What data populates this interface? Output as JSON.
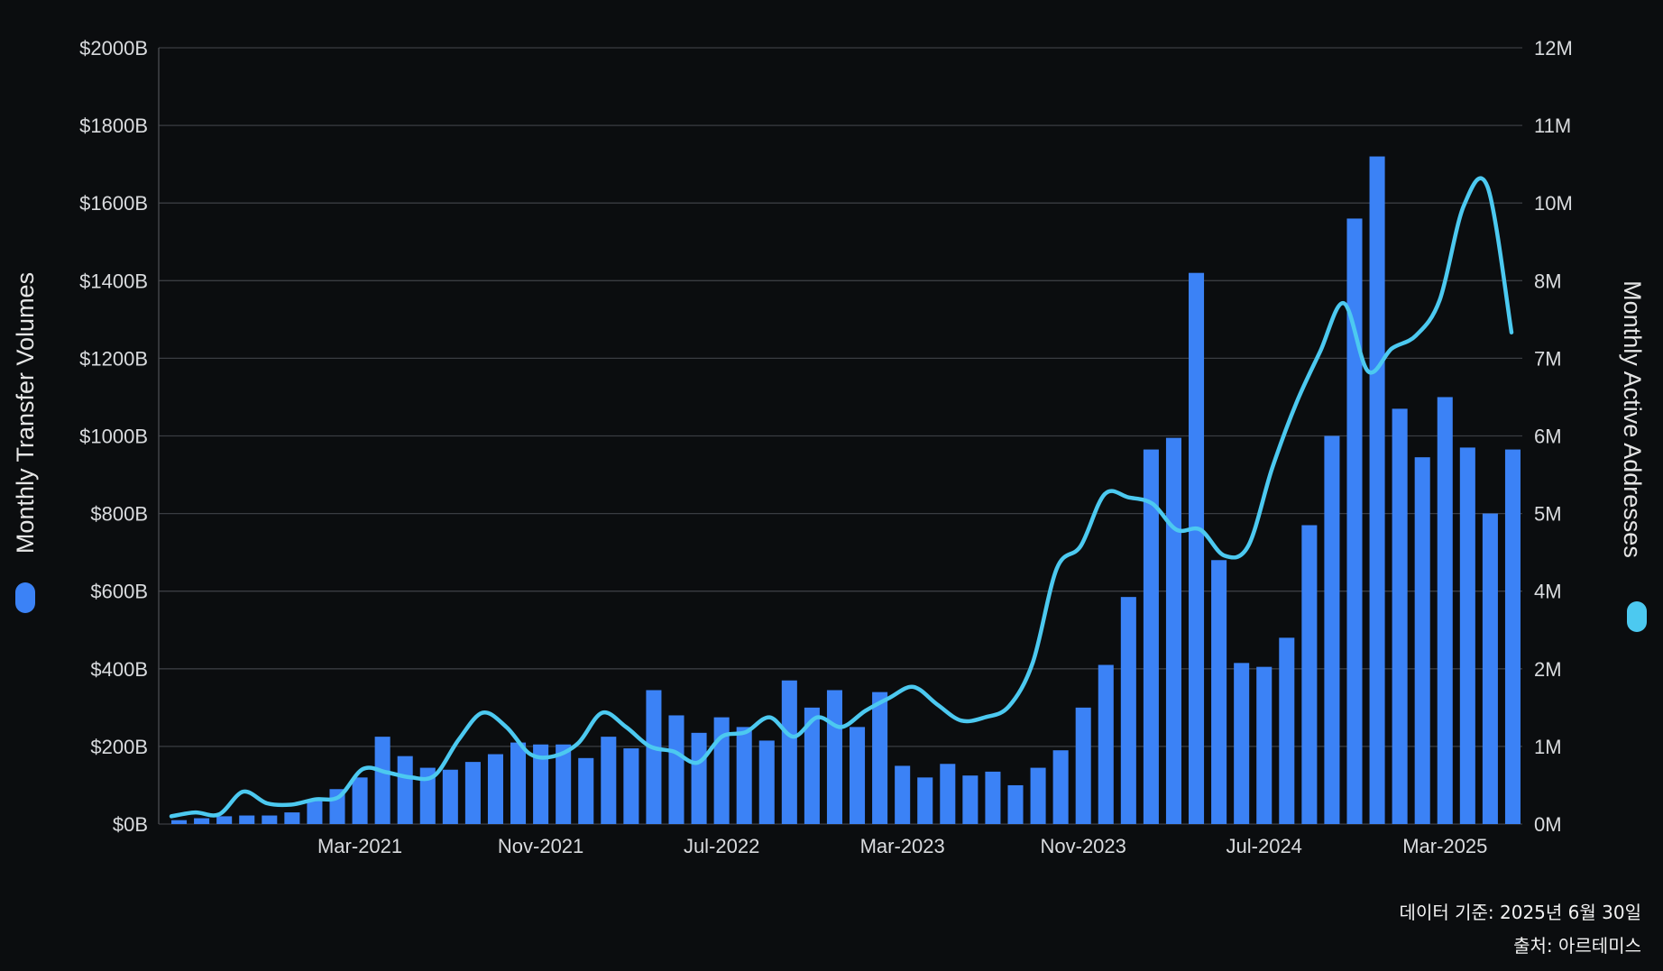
{
  "chart_data": {
    "type": "bar",
    "x_ticks": [
      "Mar-2021",
      "Nov-2021",
      "Jul-2022",
      "Mar-2023",
      "Nov-2023",
      "Jul-2024",
      "Mar-2025"
    ],
    "left_axis": {
      "label": "Monthly Transfer Volumes",
      "ticks": [
        "$0B",
        "$200B",
        "$400B",
        "$600B",
        "$800B",
        "$1000B",
        "$1200B",
        "$1400B",
        "$1600B",
        "$1800B",
        "$2000B"
      ],
      "ylim": [
        0,
        2000
      ]
    },
    "right_axis": {
      "label": "Monthly Active Addresses",
      "ticks": [
        "0M",
        "1M",
        "2M",
        "4M",
        "5M",
        "6M",
        "7M",
        "8M",
        "10M",
        "11M",
        "12M"
      ]
    },
    "series": [
      {
        "name": "Monthly Transfer Volumes",
        "type": "bar",
        "color": "#3b82f6",
        "values": [
          10,
          15,
          20,
          22,
          22,
          30,
          60,
          90,
          120,
          225,
          175,
          145,
          140,
          160,
          180,
          210,
          205,
          205,
          170,
          225,
          195,
          345,
          280,
          235,
          275,
          250,
          215,
          370,
          300,
          345,
          250,
          340,
          150,
          120,
          155,
          125,
          135,
          100,
          145,
          190,
          300,
          410,
          585,
          965,
          995,
          1420,
          680,
          415,
          405,
          480,
          770,
          1000,
          1560,
          1720,
          1070,
          945,
          1100,
          970,
          800,
          965
        ]
      },
      {
        "name": "Monthly Active Addresses",
        "type": "line",
        "color": "#4cc9f0",
        "values": [
          0.12,
          0.18,
          0.15,
          0.5,
          0.32,
          0.3,
          0.38,
          0.42,
          0.85,
          0.8,
          0.72,
          0.75,
          1.3,
          1.72,
          1.5,
          1.08,
          1.05,
          1.25,
          1.72,
          1.5,
          1.2,
          1.12,
          0.95,
          1.35,
          1.42,
          1.65,
          1.35,
          1.65,
          1.5,
          1.75,
          1.95,
          2.12,
          1.85,
          1.6,
          1.65,
          1.82,
          2.5,
          3.95,
          4.3,
          5.1,
          5.05,
          4.95,
          4.55,
          4.55,
          4.15,
          4.3,
          5.5,
          6.5,
          7.3,
          8.05,
          7.0,
          7.35,
          7.55,
          8.1,
          9.55,
          9.85,
          7.6
        ]
      }
    ],
    "grid": true
  },
  "footer": {
    "date_note": "데이터 기준: 2025년 6월 30일",
    "source_note": "출처: 아르테미스"
  }
}
